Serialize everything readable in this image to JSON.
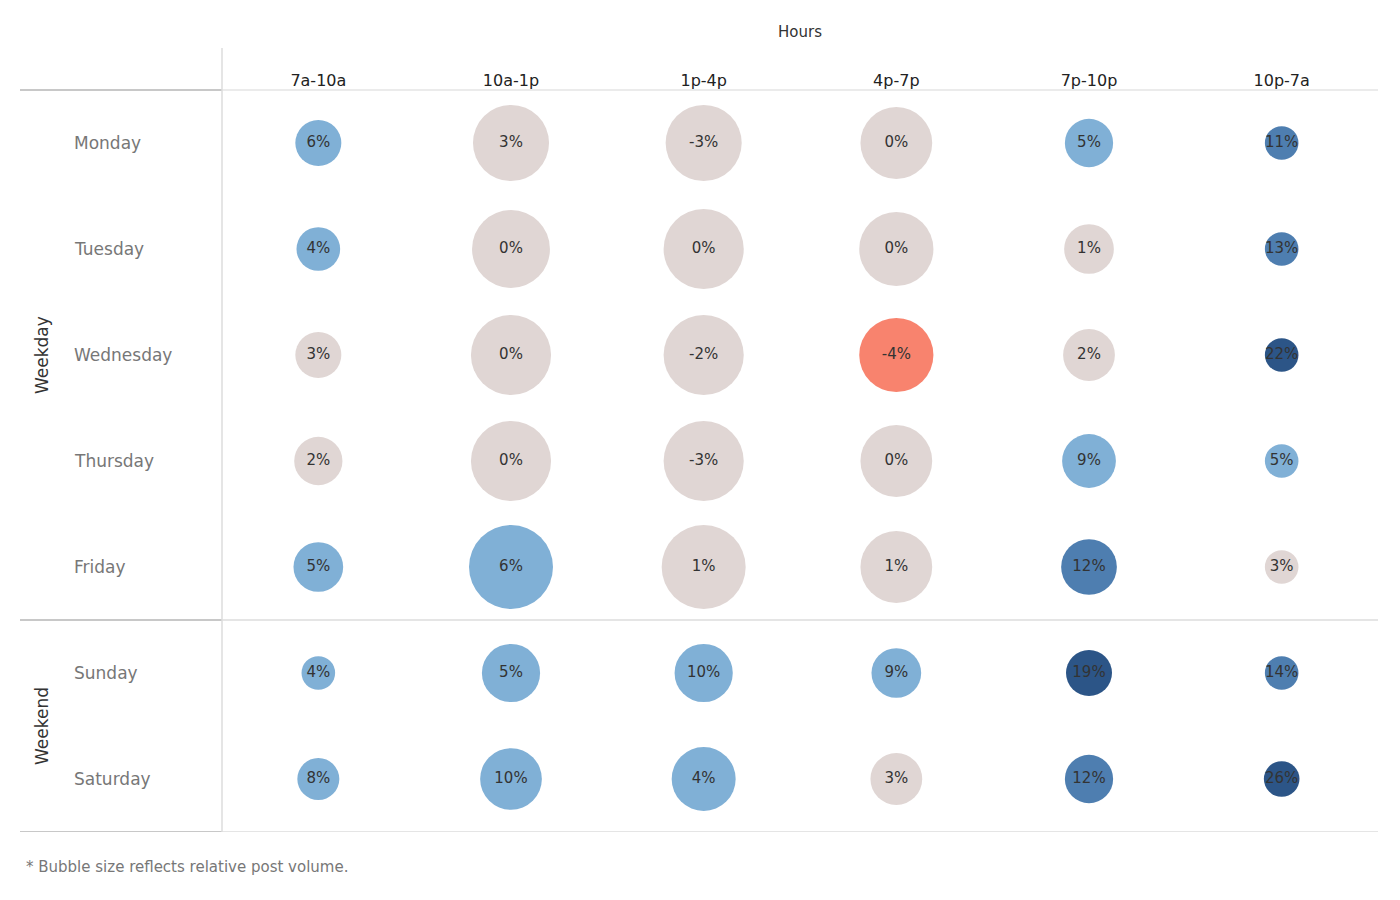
{
  "chart_data": {
    "type": "bubble",
    "x_label": "Hours",
    "categories": [
      "7a-10a",
      "10a-1p",
      "1p-4p",
      "4p-7p",
      "7p-10p",
      "10p-7a"
    ],
    "groups": [
      {
        "name": "Weekday",
        "rows": [
          "Monday",
          "Tuesday",
          "Wednesday",
          "Thursday",
          "Friday"
        ]
      },
      {
        "name": "Weekend",
        "rows": [
          "Sunday",
          "Saturday"
        ]
      }
    ],
    "values": [
      [
        6,
        3,
        -3,
        0,
        5,
        11
      ],
      [
        4,
        0,
        0,
        0,
        1,
        13
      ],
      [
        3,
        0,
        -2,
        -4,
        2,
        22
      ],
      [
        2,
        0,
        -3,
        0,
        9,
        5
      ],
      [
        5,
        6,
        1,
        1,
        12,
        3
      ],
      [
        4,
        5,
        10,
        9,
        19,
        14
      ],
      [
        8,
        10,
        4,
        3,
        12,
        26
      ]
    ],
    "value_labels": [
      [
        "6%",
        "3%",
        "-3%",
        "0%",
        "5%",
        "11%"
      ],
      [
        "4%",
        "0%",
        "0%",
        "0%",
        "1%",
        "13%"
      ],
      [
        "3%",
        "0%",
        "-2%",
        "-4%",
        "2%",
        "22%"
      ],
      [
        "2%",
        "0%",
        "-3%",
        "0%",
        "9%",
        "5%"
      ],
      [
        "5%",
        "6%",
        "1%",
        "1%",
        "12%",
        "3%"
      ],
      [
        "4%",
        "5%",
        "10%",
        "9%",
        "19%",
        "14%"
      ],
      [
        "8%",
        "10%",
        "4%",
        "3%",
        "12%",
        "26%"
      ]
    ],
    "sizes": [
      [
        30,
        82,
        82,
        73,
        33,
        16
      ],
      [
        27,
        86,
        91,
        78,
        35,
        16
      ],
      [
        30,
        91,
        91,
        78,
        38,
        16
      ],
      [
        33,
        91,
        91,
        73,
        41,
        16
      ],
      [
        35,
        100,
        100,
        73,
        44,
        16
      ],
      [
        16,
        48,
        48,
        35,
        30,
        16
      ],
      [
        25,
        54,
        58,
        38,
        33,
        18
      ]
    ],
    "colors": [
      [
        "#80b0d6",
        "#e0d6d4",
        "#e0d6d4",
        "#e0d6d4",
        "#80b0d6",
        "#4e7eb0"
      ],
      [
        "#80b0d6",
        "#e0d6d4",
        "#e0d6d4",
        "#e0d6d4",
        "#e0d6d4",
        "#4e7eb0"
      ],
      [
        "#e0d6d4",
        "#e0d6d4",
        "#e0d6d4",
        "#f8836e",
        "#e0d6d4",
        "#2c5587"
      ],
      [
        "#e0d6d4",
        "#e0d6d4",
        "#e0d6d4",
        "#e0d6d4",
        "#80b0d6",
        "#80b0d6"
      ],
      [
        "#80b0d6",
        "#80b0d6",
        "#e0d6d4",
        "#e0d6d4",
        "#4e7eb0",
        "#e0d6d4"
      ],
      [
        "#80b0d6",
        "#80b0d6",
        "#80b0d6",
        "#80b0d6",
        "#2c5587",
        "#4e7eb0"
      ],
      [
        "#80b0d6",
        "#80b0d6",
        "#80b0d6",
        "#e0d6d4",
        "#4e7eb0",
        "#2c5587"
      ]
    ],
    "data_labels": true,
    "note": "* Bubble size reflects relative post volume."
  }
}
